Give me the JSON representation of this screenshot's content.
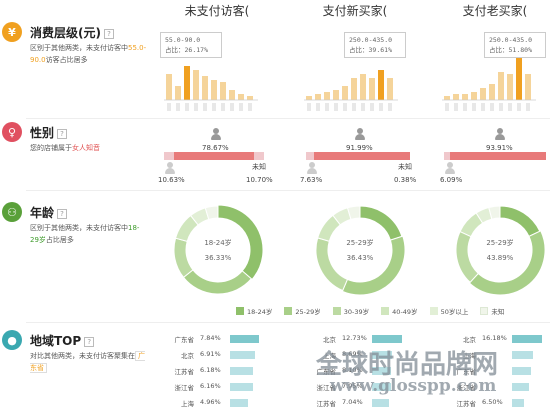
{
  "columns": [
    "未支付访客(",
    "支付新买家(",
    "支付老买家("
  ],
  "sections": {
    "price": {
      "title": "消费层级(元)",
      "icon": "yen-icon",
      "color": "#f0a020",
      "desc_pre": "区别于其他两类，未支付访客中",
      "desc_hl": "55.0-90.0",
      "desc_post": "访客占比居多",
      "tooltips": [
        {
          "range": "55.0-90.0",
          "ratio": "占比：26.17%"
        },
        {
          "range": "250.0-435.0",
          "ratio": "占比：39.61%"
        },
        {
          "range": "250.0-435.0",
          "ratio": "占比：51.80%"
        }
      ]
    },
    "gender": {
      "title": "性别",
      "icon": "gender-icon",
      "color": "#e05060",
      "desc_pre": "您的店铺属于",
      "desc_hl": "女人知音",
      "groups": [
        {
          "female_pct": "78.67%",
          "male_pct": "10.63%",
          "unknown_label": "未知",
          "unknown_pct": "10.70%",
          "female": 0.7867,
          "male": 0.1063
        },
        {
          "female_pct": "91.99%",
          "male_pct": "7.63%",
          "unknown_label": "未知",
          "unknown_pct": "0.38%",
          "female": 0.9199,
          "male": 0.0763
        },
        {
          "female_pct": "93.91%",
          "male_pct": "6.09%",
          "unknown_label": "",
          "unknown_pct": "",
          "female": 0.9391,
          "male": 0.0609
        }
      ]
    },
    "age": {
      "title": "年龄",
      "icon": "people-icon",
      "color": "#5aa03a",
      "desc_pre": "区别于其他两类，未支付访客中",
      "desc_hl": "18-29岁",
      "desc_post": "占比居多",
      "donuts": [
        {
          "label": "18-24岁",
          "value": "36.33%",
          "slices": [
            36.33,
            28,
            15,
            10,
            6,
            4.67
          ],
          "hl": 0
        },
        {
          "label": "25-29岁",
          "value": "36.43%",
          "slices": [
            20,
            36.43,
            23,
            10,
            6,
            4.57
          ],
          "hl": 1
        },
        {
          "label": "25-29岁",
          "value": "43.89%",
          "slices": [
            18,
            43.89,
            20,
            9,
            5,
            4.11
          ],
          "hl": 1
        }
      ],
      "legend": [
        {
          "label": "18-24岁",
          "color": "#8fc06a"
        },
        {
          "label": "25-29岁",
          "color": "#a8cf88"
        },
        {
          "label": "30-39岁",
          "color": "#bcdaa2"
        },
        {
          "label": "40-49岁",
          "color": "#d0e6bd"
        },
        {
          "label": "50岁以上",
          "color": "#e2efd6"
        },
        {
          "label": "未知",
          "color": "#f0f5ea"
        }
      ]
    },
    "region": {
      "title": "地域TOP",
      "icon": "location-pin-icon",
      "color": "#3aa8b0",
      "desc_pre": "对比其他两类，未支付访客聚集在",
      "desc_hl": "广东省",
      "cols": [
        [
          {
            "name": "广东省",
            "value": "7.84%",
            "ratio": 0.95
          },
          {
            "name": "北京",
            "value": "6.91%",
            "ratio": 0.84
          },
          {
            "name": "江苏省",
            "value": "6.18%",
            "ratio": 0.75
          },
          {
            "name": "浙江省",
            "value": "6.16%",
            "ratio": 0.75
          },
          {
            "name": "上海",
            "value": "4.96%",
            "ratio": 0.6
          }
        ],
        [
          {
            "name": "北京",
            "value": "12.73%",
            "ratio": 1.0
          },
          {
            "name": "上海",
            "value": "8.69%",
            "ratio": 0.68
          },
          {
            "name": "广东省",
            "value": "8.10%",
            "ratio": 0.64
          },
          {
            "name": "浙江省",
            "value": "7.95%",
            "ratio": 0.62
          },
          {
            "name": "江苏省",
            "value": "7.04%",
            "ratio": 0.55
          }
        ],
        [
          {
            "name": "北京",
            "value": "16.18%",
            "ratio": 1.0
          },
          {
            "name": "上海",
            "value": "",
            "ratio": 0.7
          },
          {
            "name": "广东省",
            "value": "",
            "ratio": 0.62
          },
          {
            "name": "浙江省",
            "value": "",
            "ratio": 0.55
          },
          {
            "name": "江苏省",
            "value": "6.50%",
            "ratio": 0.4
          }
        ]
      ]
    }
  },
  "watermark": {
    "cn": "全球时尚品牌网",
    "url": "www.glosspp.com"
  }
}
